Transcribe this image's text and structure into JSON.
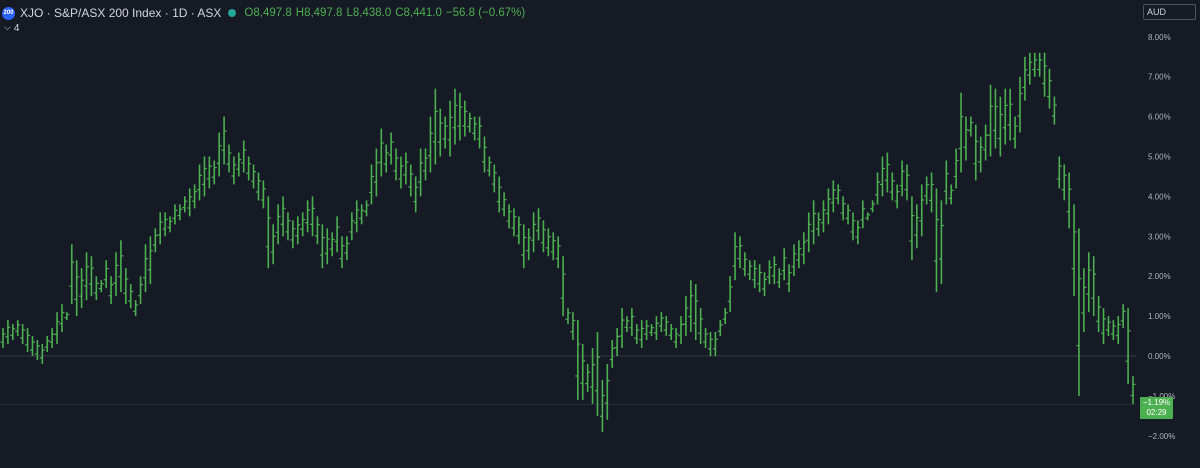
{
  "header": {
    "badge": "200",
    "symbol": "XJO · S&P/ASX 200 Index · 1D · ASX",
    "ohlc": [
      {
        "key": "O",
        "value": "8,497.8"
      },
      {
        "key": "H",
        "value": "8,497.8"
      },
      {
        "key": "L",
        "value": "8,438.0"
      },
      {
        "key": "C",
        "value": "8,441.0"
      }
    ],
    "change": "−56.8 (−0.67%)"
  },
  "collapse_label": "4",
  "currency": "AUD",
  "last_badge": {
    "value": "−1.19%",
    "countdown": "02:29"
  },
  "colors": {
    "up": "#4caf50",
    "background": "#161a25",
    "axis_text": "#b2b5be",
    "zero_line": "#363a45"
  },
  "chart_data": {
    "type": "ohlc-bar",
    "units": "percent change",
    "ylim": [
      -2.3,
      8.2
    ],
    "y_ticks": [
      "8.00%",
      "7.00%",
      "6.00%",
      "5.00%",
      "4.00%",
      "3.00%",
      "2.00%",
      "1.00%",
      "0.00%",
      "−1.00%",
      "−2.00%"
    ],
    "y_tick_values": [
      8,
      7,
      6,
      5,
      4,
      3,
      2,
      1,
      0,
      -1,
      -2
    ],
    "reference_line": 0,
    "series": [
      {
        "values": [
          [
            0.2,
            0.7
          ],
          [
            0.3,
            0.9
          ],
          [
            0.4,
            0.8
          ],
          [
            0.5,
            0.9
          ],
          [
            0.3,
            0.8
          ],
          [
            0.1,
            0.7
          ],
          [
            0.0,
            0.5
          ],
          [
            -0.1,
            0.4
          ],
          [
            -0.2,
            0.3
          ],
          [
            0.1,
            0.5
          ],
          [
            0.2,
            0.7
          ],
          [
            0.3,
            1.1
          ],
          [
            0.6,
            1.3
          ],
          [
            0.9,
            1.1
          ],
          [
            1.3,
            2.8
          ],
          [
            1.0,
            2.4
          ],
          [
            1.2,
            2.2
          ],
          [
            1.4,
            2.6
          ],
          [
            1.5,
            2.5
          ],
          [
            1.4,
            2.0
          ],
          [
            1.6,
            1.9
          ],
          [
            1.7,
            2.4
          ],
          [
            1.3,
            2.0
          ],
          [
            1.5,
            2.6
          ],
          [
            1.6,
            2.9
          ],
          [
            1.3,
            2.2
          ],
          [
            1.2,
            1.8
          ],
          [
            1.0,
            1.4
          ],
          [
            1.3,
            2.0
          ],
          [
            1.6,
            2.8
          ],
          [
            1.8,
            3.0
          ],
          [
            2.6,
            3.2
          ],
          [
            2.8,
            3.6
          ],
          [
            3.0,
            3.6
          ],
          [
            3.1,
            3.5
          ],
          [
            3.3,
            3.8
          ],
          [
            3.4,
            3.8
          ],
          [
            3.6,
            4.0
          ],
          [
            3.5,
            4.2
          ],
          [
            3.7,
            4.3
          ],
          [
            3.9,
            4.8
          ],
          [
            4.0,
            5.0
          ],
          [
            4.2,
            5.0
          ],
          [
            4.3,
            4.9
          ],
          [
            4.5,
            5.6
          ],
          [
            4.8,
            6.0
          ],
          [
            4.6,
            5.3
          ],
          [
            4.3,
            5.0
          ],
          [
            4.5,
            5.1
          ],
          [
            4.6,
            5.4
          ],
          [
            4.4,
            5.0
          ],
          [
            4.2,
            4.8
          ],
          [
            3.9,
            4.6
          ],
          [
            3.7,
            4.4
          ],
          [
            2.2,
            4.0
          ],
          [
            2.3,
            3.3
          ],
          [
            2.8,
            3.8
          ],
          [
            3.0,
            4.0
          ],
          [
            2.9,
            3.6
          ],
          [
            2.7,
            3.4
          ],
          [
            2.8,
            3.5
          ],
          [
            3.0,
            3.6
          ],
          [
            3.1,
            3.9
          ],
          [
            3.0,
            4.0
          ],
          [
            2.8,
            3.5
          ],
          [
            2.2,
            3.3
          ],
          [
            2.3,
            3.2
          ],
          [
            2.5,
            3.1
          ],
          [
            2.6,
            3.5
          ],
          [
            2.2,
            3.0
          ],
          [
            2.4,
            3.0
          ],
          [
            2.9,
            3.6
          ],
          [
            3.1,
            3.9
          ],
          [
            3.3,
            3.8
          ],
          [
            3.5,
            3.9
          ],
          [
            3.8,
            4.8
          ],
          [
            4.0,
            5.2
          ],
          [
            4.5,
            5.7
          ],
          [
            4.6,
            5.3
          ],
          [
            4.8,
            5.6
          ],
          [
            4.4,
            5.2
          ],
          [
            4.2,
            5.0
          ],
          [
            4.3,
            5.1
          ],
          [
            4.0,
            4.8
          ],
          [
            3.6,
            4.5
          ],
          [
            4.0,
            5.2
          ],
          [
            4.4,
            5.2
          ],
          [
            4.6,
            6.0
          ],
          [
            4.8,
            6.7
          ],
          [
            5.0,
            6.2
          ],
          [
            5.2,
            6.0
          ],
          [
            5.0,
            6.4
          ],
          [
            5.3,
            6.7
          ],
          [
            5.4,
            6.6
          ],
          [
            5.5,
            6.4
          ],
          [
            5.6,
            6.1
          ],
          [
            5.4,
            6.0
          ],
          [
            5.2,
            6.0
          ],
          [
            4.6,
            5.5
          ],
          [
            4.5,
            5.0
          ],
          [
            4.1,
            4.8
          ],
          [
            3.6,
            4.5
          ],
          [
            3.5,
            4.1
          ],
          [
            3.2,
            3.8
          ],
          [
            3.0,
            3.7
          ],
          [
            2.8,
            3.5
          ],
          [
            2.2,
            3.3
          ],
          [
            2.4,
            3.2
          ],
          [
            2.6,
            3.6
          ],
          [
            2.9,
            3.7
          ],
          [
            2.6,
            3.4
          ],
          [
            2.5,
            3.2
          ],
          [
            2.4,
            3.1
          ],
          [
            2.2,
            3.0
          ],
          [
            1.0,
            2.5
          ],
          [
            0.8,
            1.2
          ],
          [
            0.4,
            1.1
          ],
          [
            -1.1,
            0.9
          ],
          [
            -1.1,
            0.3
          ],
          [
            -0.9,
            -0.2
          ],
          [
            -1.2,
            0.2
          ],
          [
            -1.5,
            0.6
          ],
          [
            -1.9,
            -0.6
          ],
          [
            -1.6,
            -0.2
          ],
          [
            -0.3,
            0.4
          ],
          [
            0.0,
            0.7
          ],
          [
            0.2,
            1.2
          ],
          [
            0.6,
            1.0
          ],
          [
            0.5,
            1.2
          ],
          [
            0.3,
            0.8
          ],
          [
            0.2,
            0.9
          ],
          [
            0.4,
            0.9
          ],
          [
            0.5,
            0.8
          ],
          [
            0.4,
            1.0
          ],
          [
            0.6,
            1.1
          ],
          [
            0.5,
            1.0
          ],
          [
            0.4,
            0.8
          ],
          [
            0.2,
            0.7
          ],
          [
            0.3,
            1.0
          ],
          [
            0.5,
            1.5
          ],
          [
            0.6,
            1.9
          ],
          [
            0.4,
            1.8
          ],
          [
            0.3,
            1.2
          ],
          [
            0.2,
            0.7
          ],
          [
            0.0,
            0.6
          ],
          [
            0.0,
            0.6
          ],
          [
            0.5,
            0.9
          ],
          [
            0.8,
            1.2
          ],
          [
            1.1,
            2.0
          ],
          [
            1.9,
            3.1
          ],
          [
            2.2,
            3.0
          ],
          [
            2.0,
            2.6
          ],
          [
            1.9,
            2.4
          ],
          [
            1.7,
            2.4
          ],
          [
            1.6,
            2.3
          ],
          [
            1.5,
            2.1
          ],
          [
            1.8,
            2.4
          ],
          [
            1.8,
            2.5
          ],
          [
            1.7,
            2.2
          ],
          [
            1.9,
            2.7
          ],
          [
            1.6,
            2.3
          ],
          [
            2.0,
            2.8
          ],
          [
            2.2,
            2.9
          ],
          [
            2.3,
            3.1
          ],
          [
            2.6,
            3.6
          ],
          [
            2.8,
            3.9
          ],
          [
            3.0,
            3.6
          ],
          [
            3.1,
            3.9
          ],
          [
            3.3,
            4.2
          ],
          [
            3.6,
            4.4
          ],
          [
            3.8,
            4.3
          ],
          [
            3.4,
            4.0
          ],
          [
            3.3,
            3.8
          ],
          [
            2.9,
            3.6
          ],
          [
            2.8,
            3.4
          ],
          [
            3.2,
            3.9
          ],
          [
            3.4,
            3.6
          ],
          [
            3.6,
            3.9
          ],
          [
            3.8,
            4.6
          ],
          [
            4.0,
            5.0
          ],
          [
            4.1,
            5.1
          ],
          [
            3.9,
            4.6
          ],
          [
            3.7,
            4.3
          ],
          [
            4.0,
            4.9
          ],
          [
            3.9,
            4.8
          ],
          [
            2.4,
            4.0
          ],
          [
            2.7,
            3.8
          ],
          [
            3.0,
            4.3
          ],
          [
            3.8,
            4.5
          ],
          [
            3.6,
            4.6
          ],
          [
            1.6,
            4.2
          ],
          [
            1.8,
            3.9
          ],
          [
            3.8,
            4.9
          ],
          [
            3.8,
            4.3
          ],
          [
            4.2,
            5.2
          ],
          [
            4.6,
            6.6
          ],
          [
            4.9,
            6.0
          ],
          [
            5.5,
            6.0
          ],
          [
            4.4,
            5.8
          ],
          [
            4.6,
            5.5
          ],
          [
            4.9,
            5.8
          ],
          [
            5.0,
            6.8
          ],
          [
            5.2,
            6.7
          ],
          [
            5.0,
            6.5
          ],
          [
            5.3,
            6.7
          ],
          [
            5.4,
            6.7
          ],
          [
            5.2,
            6.0
          ],
          [
            5.6,
            7.0
          ],
          [
            6.4,
            7.5
          ],
          [
            6.8,
            7.6
          ],
          [
            7.0,
            7.6
          ],
          [
            7.0,
            7.6
          ],
          [
            6.5,
            7.6
          ],
          [
            6.2,
            7.2
          ],
          [
            5.8,
            6.5
          ],
          [
            4.2,
            5.0
          ],
          [
            3.9,
            4.8
          ],
          [
            3.2,
            4.6
          ],
          [
            1.5,
            3.8
          ],
          [
            -1.0,
            3.2
          ],
          [
            0.6,
            2.2
          ],
          [
            1.1,
            2.6
          ],
          [
            1.0,
            2.5
          ],
          [
            0.6,
            1.5
          ],
          [
            0.3,
            1.2
          ],
          [
            0.5,
            1.0
          ],
          [
            0.4,
            0.9
          ],
          [
            0.3,
            1.0
          ],
          [
            0.7,
            1.3
          ],
          [
            -0.7,
            1.2
          ],
          [
            -1.2,
            -0.5
          ]
        ]
      }
    ]
  }
}
